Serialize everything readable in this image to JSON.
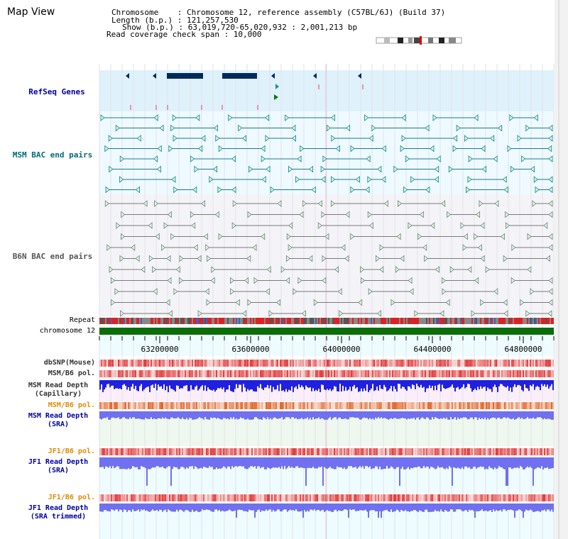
{
  "title": "Map View",
  "info": {
    "chromosome": "Chromosome    : Chromosome 12, reference assembly (C57BL/6J) (Build 37)",
    "length": "Length (b.p.) : 121,257,530",
    "show": "Show (b.p.) : 63,019,720-65,020,932 : 2,001,213 bp",
    "coverage": "Read coverage check span : 10,000"
  },
  "tracks": {
    "refseq": "RefSeq Genes",
    "msm_bac": "MSM BAC end pairs",
    "b6n_bac": "B6N BAC end pairs",
    "repeat": "Repeat",
    "chromosome": "chromosome 12",
    "dbsnp": "dbSNP(Mouse)",
    "msm_b6_pol_1": "MSM/B6 pol.",
    "msm_depth_cap": "MSM Read Depth\n(Capillary)",
    "msm_b6_pol_2": "MSM/B6 pol.",
    "msm_depth_sra": "MSM Read Depth\n(SRA)",
    "jf1_b6_pol_1": "JF1/B6 pol.",
    "jf1_depth_sra": "JF1 Read Depth\n(SRA)",
    "jf1_b6_pol_2": "JF1/B6 pol.",
    "jf1_depth_trim": "JF1 Read Depth\n(SRA trimmed)"
  },
  "axis": {
    "ticks": [
      "63200000",
      "63600000",
      "64000000",
      "64400000",
      "64800000"
    ]
  },
  "colors": {
    "refseq_bg": "#dff1fb",
    "gene": "#002a5c",
    "msm_bac": "#1a7a90",
    "b6n_bac": "#7a7a7a",
    "chromosome": "#0b6e0b",
    "label_blue": "#0000a0",
    "label_teal": "#006a7a",
    "label_orange": "#e08a00",
    "depth_blue": "#2020e0",
    "depth_light": "#7070f0"
  }
}
